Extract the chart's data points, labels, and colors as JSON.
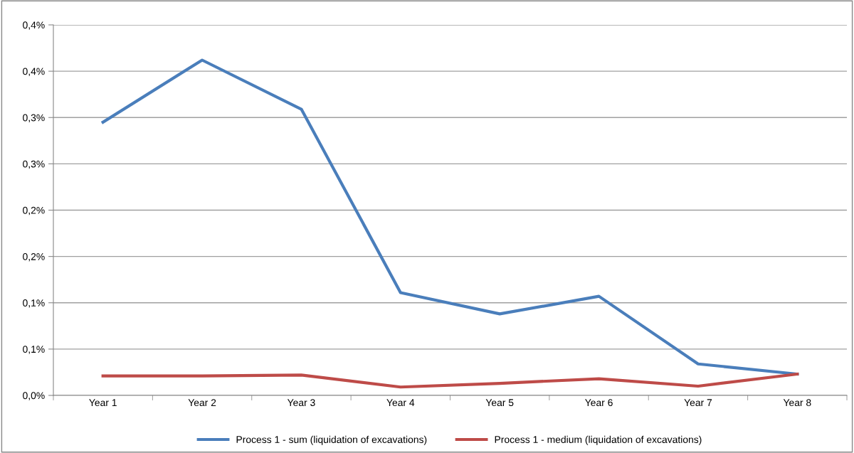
{
  "chart_data": {
    "type": "line",
    "categories": [
      "Year 1",
      "Year 2",
      "Year 3",
      "Year 4",
      "Year 5",
      "Year 6",
      "Year 7",
      "Year 8"
    ],
    "series": [
      {
        "name": "Process 1 - sum (liquidation of excavations)",
        "color": "#4a7ebb",
        "values": [
          0.295,
          0.362,
          0.309,
          0.111,
          0.088,
          0.107,
          0.034,
          0.023
        ]
      },
      {
        "name": "Process 1 - medium (liquidation of excavations)",
        "color": "#be4b48",
        "values": [
          0.021,
          0.021,
          0.022,
          0.009,
          0.013,
          0.018,
          0.01,
          0.023
        ]
      }
    ],
    "ylim": [
      0,
      0.4
    ],
    "yticks": [
      {
        "value": 0,
        "label": "0,0%"
      },
      {
        "value": 0.05,
        "label": "0,1%"
      },
      {
        "value": 0.1,
        "label": "0,1%"
      },
      {
        "value": 0.15,
        "label": "0,2%"
      },
      {
        "value": 0.2,
        "label": "0,2%"
      },
      {
        "value": 0.25,
        "label": "0,3%"
      },
      {
        "value": 0.3,
        "label": "0,3%"
      },
      {
        "value": 0.35,
        "label": "0,4%"
      },
      {
        "value": 0.4,
        "label": "0,4%"
      }
    ],
    "grid": "y",
    "legend": "bottom",
    "marker": "none",
    "line_style": "solid"
  }
}
